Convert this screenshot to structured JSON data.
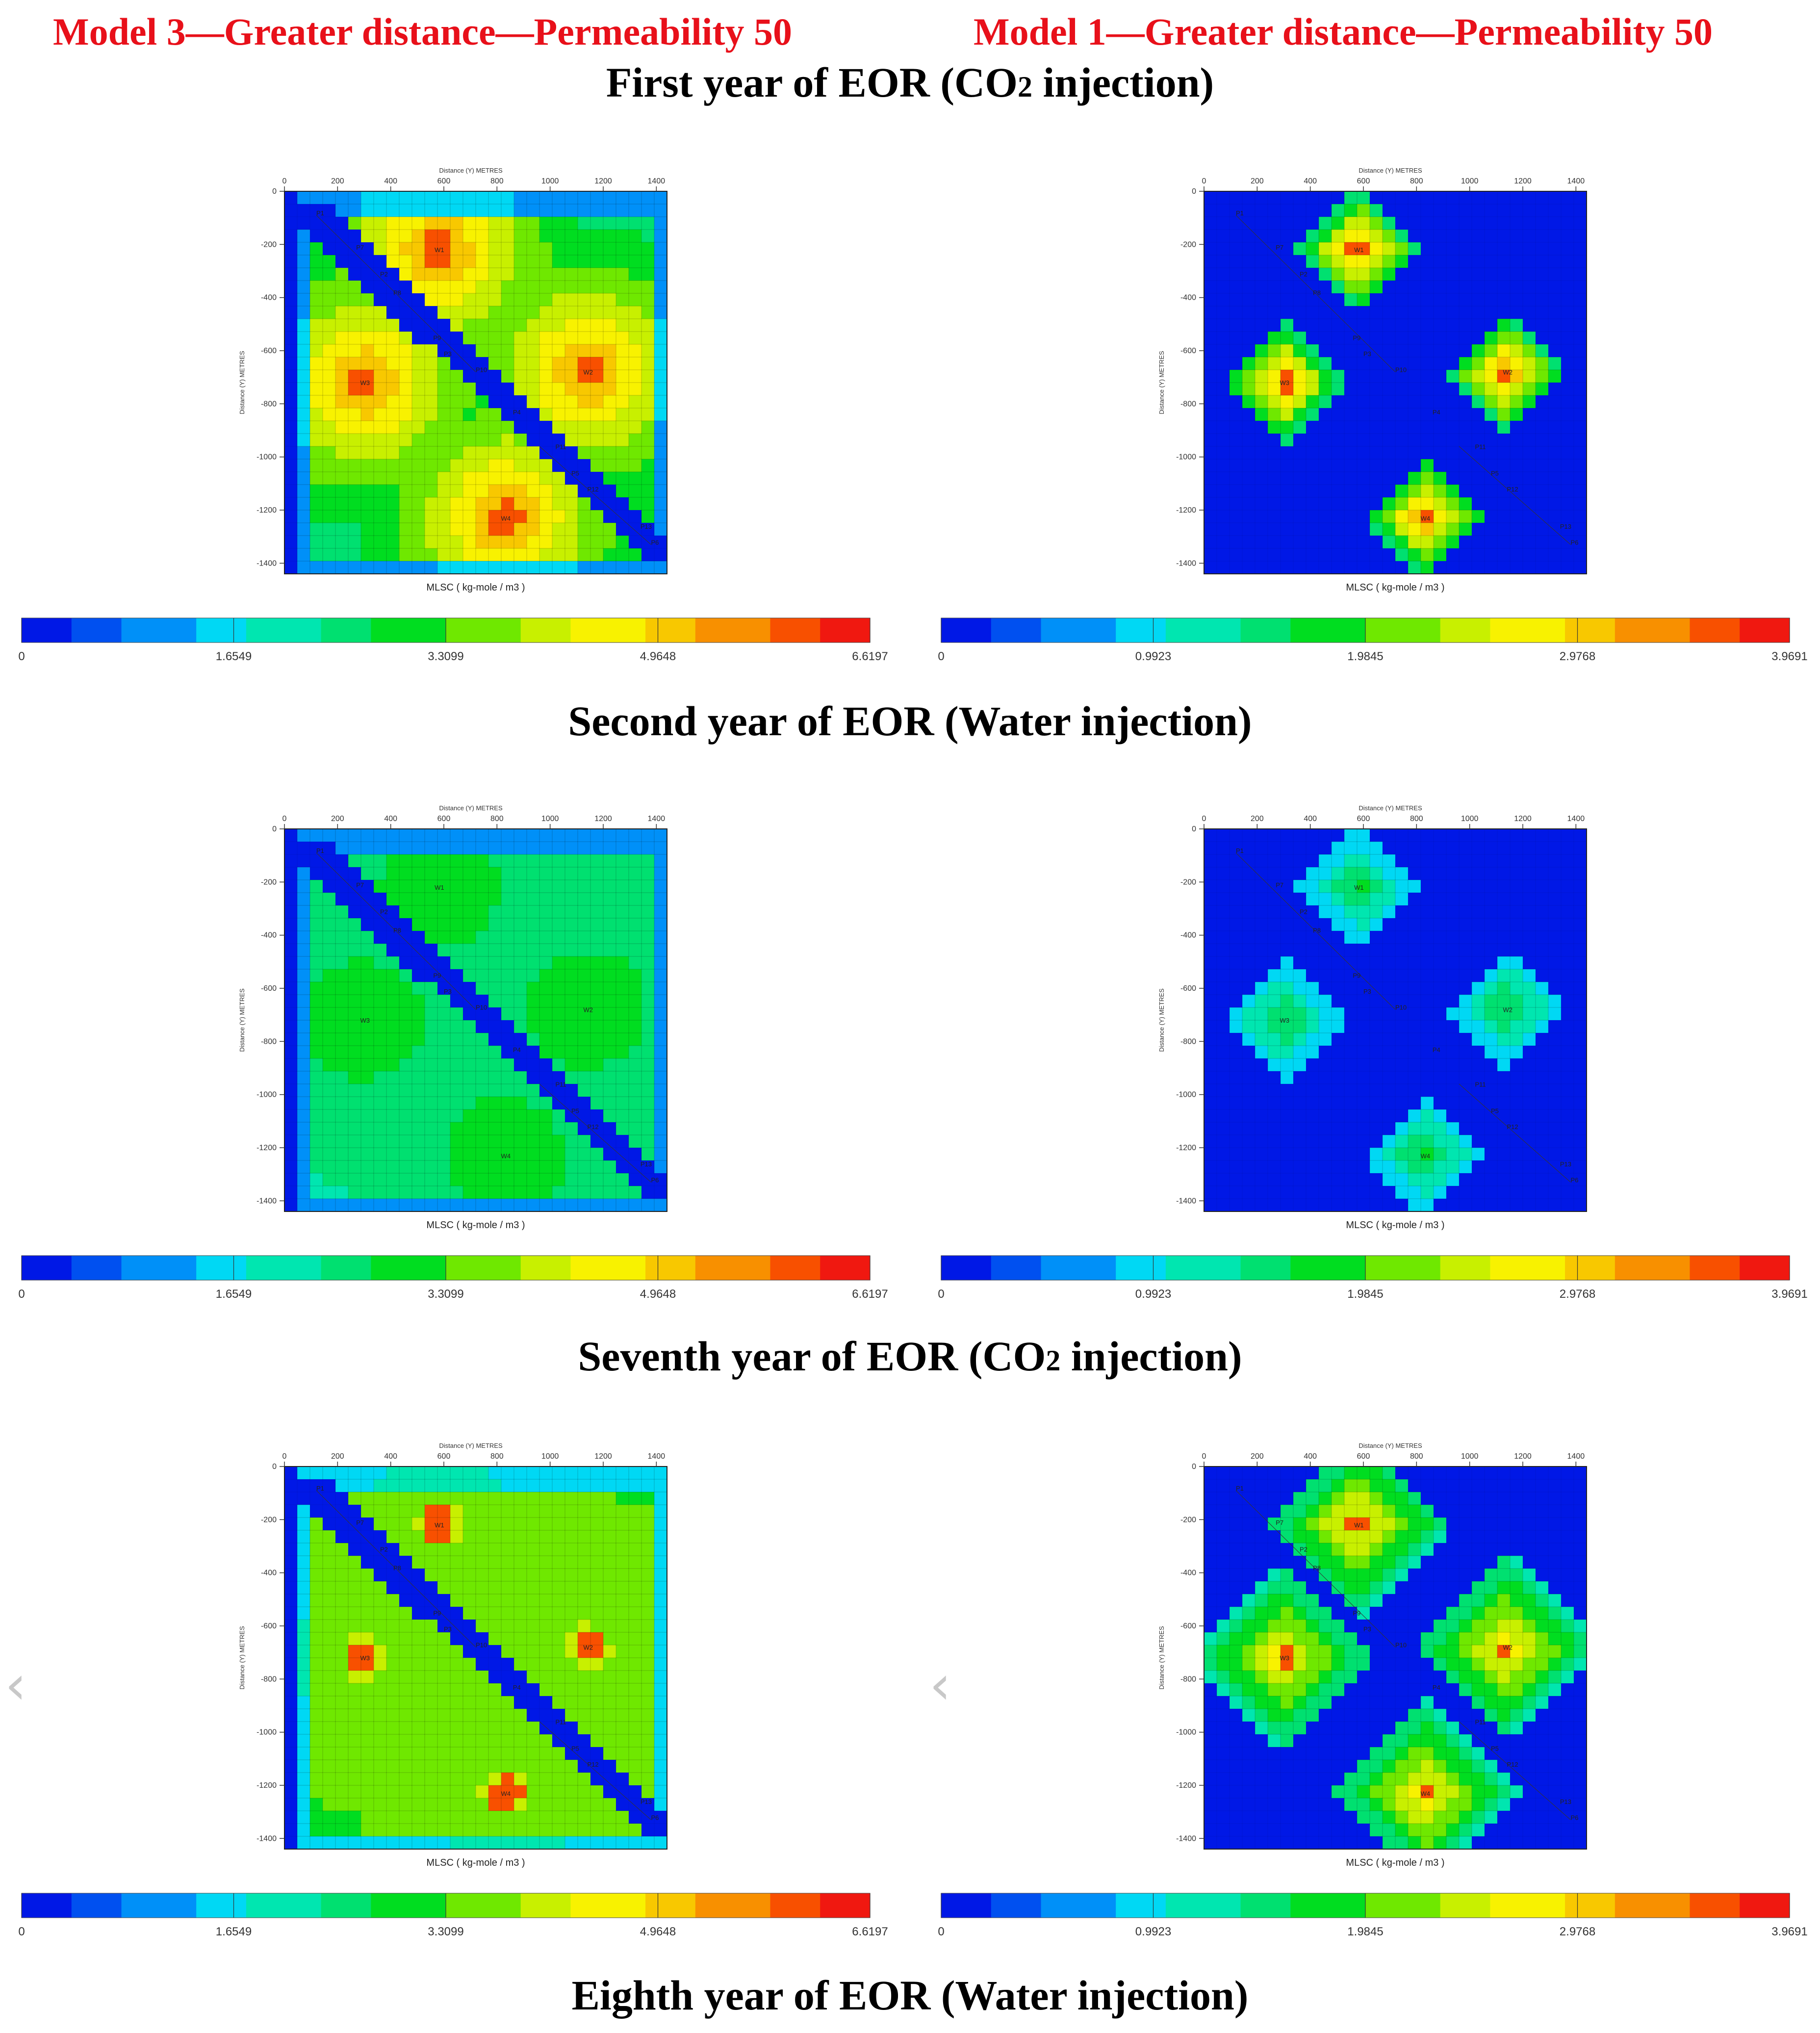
{
  "headers": {
    "left": "Model 3—Greater distance—Permeability 50",
    "right": "Model 1—Greater distance—Permeability 50"
  },
  "section_titles": [
    {
      "pre": "First year of EOR (CO",
      "sub": "2",
      "post": " injection)"
    },
    {
      "pre": "Second year of EOR (Water injection)",
      "sub": "",
      "post": ""
    },
    {
      "pre": "Seventh year of EOR (CO",
      "sub": "2",
      "post": " injection)"
    },
    {
      "pre": "Eighth year of EOR (Water injection)",
      "sub": "",
      "post": ""
    }
  ],
  "colors": {
    "header_red": "#e8101a",
    "ramp": [
      "#0018e6",
      "#0050f0",
      "#0090f8",
      "#00d8f4",
      "#00e6b0",
      "#00e070",
      "#00dd20",
      "#6fe800",
      "#c8f000",
      "#f8f200",
      "#f8c800",
      "#f89000",
      "#f85000",
      "#f01810"
    ]
  },
  "icons": {
    "nav_prev": "chevron-left-icon"
  },
  "nav_glyph": "‹",
  "chart_data": [
    {
      "type": "heatmap",
      "model": "Model 3",
      "period": "First year",
      "grid_size": 30,
      "xlabel": "Distance (Y) METRES",
      "ylabel": "Distance (Y) METRES",
      "colorbar_label": "MLSC ( kg-mole / m3 )",
      "x_ticks": [
        0,
        200,
        400,
        600,
        800,
        1000,
        1200,
        1400
      ],
      "y_ticks": [
        0,
        -200,
        -400,
        -600,
        -800,
        -1000,
        -1200,
        -1400
      ],
      "colorbar_ticks": [
        "0",
        "1.6549",
        "3.3099",
        "4.9648",
        "6.6197"
      ],
      "vmax": 6.6197,
      "wells": [
        {
          "name": "W1",
          "x": 580,
          "y": -220
        },
        {
          "name": "W2",
          "x": 1140,
          "y": -680
        },
        {
          "name": "W3",
          "x": 300,
          "y": -720
        },
        {
          "name": "W4",
          "x": 830,
          "y": -1230
        }
      ],
      "producers": [
        {
          "name": "P1",
          "x": 120,
          "y": -90
        },
        {
          "name": "P7",
          "x": 270,
          "y": -220
        },
        {
          "name": "P2",
          "x": 360,
          "y": -320
        },
        {
          "name": "P8",
          "x": 410,
          "y": -390
        },
        {
          "name": "P9",
          "x": 560,
          "y": -560
        },
        {
          "name": "P3",
          "x": 600,
          "y": -620
        },
        {
          "name": "P10",
          "x": 720,
          "y": -680
        },
        {
          "name": "P4",
          "x": 860,
          "y": -840
        },
        {
          "name": "P11",
          "x": 1020,
          "y": -970
        },
        {
          "name": "P5",
          "x": 1080,
          "y": -1070
        },
        {
          "name": "P12",
          "x": 1140,
          "y": -1130
        },
        {
          "name": "P13",
          "x": 1340,
          "y": -1270
        },
        {
          "name": "P6",
          "x": 1380,
          "y": -1330
        }
      ]
    },
    {
      "type": "heatmap",
      "model": "Model 1",
      "period": "First year",
      "grid_size": 30,
      "xlabel": "Distance (Y) METRES",
      "ylabel": "Distance (Y) METRES",
      "colorbar_label": "MLSC ( kg-mole / m3 )",
      "x_ticks": [
        0,
        200,
        400,
        600,
        800,
        1000,
        1200,
        1400
      ],
      "y_ticks": [
        0,
        -200,
        -400,
        -600,
        -800,
        -1000,
        -1200,
        -1400
      ],
      "colorbar_ticks": [
        "0",
        "0.9923",
        "1.9845",
        "2.9768",
        "3.9691"
      ],
      "vmax": 3.9691,
      "wells": [
        {
          "name": "W1",
          "x": 580,
          "y": -220
        },
        {
          "name": "W2",
          "x": 1140,
          "y": -680
        },
        {
          "name": "W3",
          "x": 300,
          "y": -720
        },
        {
          "name": "W4",
          "x": 830,
          "y": -1230
        }
      ],
      "producers": [
        {
          "name": "P1",
          "x": 120,
          "y": -90
        },
        {
          "name": "P7",
          "x": 270,
          "y": -220
        },
        {
          "name": "P2",
          "x": 360,
          "y": -320
        },
        {
          "name": "P8",
          "x": 410,
          "y": -390
        },
        {
          "name": "P9",
          "x": 560,
          "y": -560
        },
        {
          "name": "P3",
          "x": 600,
          "y": -620
        },
        {
          "name": "P10",
          "x": 720,
          "y": -680
        },
        {
          "name": "P4",
          "x": 860,
          "y": -840
        },
        {
          "name": "P11",
          "x": 1020,
          "y": -970
        },
        {
          "name": "P5",
          "x": 1080,
          "y": -1070
        },
        {
          "name": "P12",
          "x": 1140,
          "y": -1130
        },
        {
          "name": "P13",
          "x": 1340,
          "y": -1270
        },
        {
          "name": "P6",
          "x": 1380,
          "y": -1330
        }
      ]
    },
    {
      "type": "heatmap",
      "model": "Model 3",
      "period": "Second year",
      "grid_size": 30,
      "xlabel": "Distance (Y) METRES",
      "ylabel": "Distance (Y) METRES",
      "colorbar_label": "MLSC ( kg-mole / m3 )",
      "x_ticks": [
        0,
        200,
        400,
        600,
        800,
        1000,
        1200,
        1400
      ],
      "y_ticks": [
        0,
        -200,
        -400,
        -600,
        -800,
        -1000,
        -1200,
        -1400
      ],
      "colorbar_ticks": [
        "0",
        "1.6549",
        "3.3099",
        "4.9648",
        "6.6197"
      ],
      "vmax": 6.6197,
      "wells": [
        {
          "name": "W1",
          "x": 580,
          "y": -220
        },
        {
          "name": "W2",
          "x": 1140,
          "y": -680
        },
        {
          "name": "W3",
          "x": 300,
          "y": -720
        },
        {
          "name": "W4",
          "x": 830,
          "y": -1230
        }
      ],
      "producers": [
        {
          "name": "P1",
          "x": 120,
          "y": -90
        },
        {
          "name": "P7",
          "x": 270,
          "y": -220
        },
        {
          "name": "P2",
          "x": 360,
          "y": -320
        },
        {
          "name": "P8",
          "x": 410,
          "y": -390
        },
        {
          "name": "P9",
          "x": 560,
          "y": -560
        },
        {
          "name": "P3",
          "x": 600,
          "y": -620
        },
        {
          "name": "P10",
          "x": 720,
          "y": -680
        },
        {
          "name": "P4",
          "x": 860,
          "y": -840
        },
        {
          "name": "P11",
          "x": 1020,
          "y": -970
        },
        {
          "name": "P5",
          "x": 1080,
          "y": -1070
        },
        {
          "name": "P12",
          "x": 1140,
          "y": -1130
        },
        {
          "name": "P13",
          "x": 1340,
          "y": -1270
        },
        {
          "name": "P6",
          "x": 1380,
          "y": -1330
        }
      ]
    },
    {
      "type": "heatmap",
      "model": "Model 1",
      "period": "Second year",
      "grid_size": 30,
      "xlabel": "Distance (Y) METRES",
      "ylabel": "Distance (Y) METRES",
      "colorbar_label": "MLSC ( kg-mole / m3 )",
      "x_ticks": [
        0,
        200,
        400,
        600,
        800,
        1000,
        1200,
        1400
      ],
      "y_ticks": [
        0,
        -200,
        -400,
        -600,
        -800,
        -1000,
        -1200,
        -1400
      ],
      "colorbar_ticks": [
        "0",
        "0.9923",
        "1.9845",
        "2.9768",
        "3.9691"
      ],
      "vmax": 3.9691,
      "wells": [
        {
          "name": "W1",
          "x": 580,
          "y": -220
        },
        {
          "name": "W2",
          "x": 1140,
          "y": -680
        },
        {
          "name": "W3",
          "x": 300,
          "y": -720
        },
        {
          "name": "W4",
          "x": 830,
          "y": -1230
        }
      ],
      "producers": [
        {
          "name": "P1",
          "x": 120,
          "y": -90
        },
        {
          "name": "P7",
          "x": 270,
          "y": -220
        },
        {
          "name": "P2",
          "x": 360,
          "y": -320
        },
        {
          "name": "P8",
          "x": 410,
          "y": -390
        },
        {
          "name": "P9",
          "x": 560,
          "y": -560
        },
        {
          "name": "P3",
          "x": 600,
          "y": -620
        },
        {
          "name": "P10",
          "x": 720,
          "y": -680
        },
        {
          "name": "P4",
          "x": 860,
          "y": -840
        },
        {
          "name": "P11",
          "x": 1020,
          "y": -970
        },
        {
          "name": "P5",
          "x": 1080,
          "y": -1070
        },
        {
          "name": "P12",
          "x": 1140,
          "y": -1130
        },
        {
          "name": "P13",
          "x": 1340,
          "y": -1270
        },
        {
          "name": "P6",
          "x": 1380,
          "y": -1330
        }
      ]
    },
    {
      "type": "heatmap",
      "model": "Model 3",
      "period": "Seventh year",
      "grid_size": 30,
      "xlabel": "Distance (Y) METRES",
      "ylabel": "Distance (Y) METRES",
      "colorbar_label": "MLSC ( kg-mole / m3 )",
      "x_ticks": [
        0,
        200,
        400,
        600,
        800,
        1000,
        1200,
        1400
      ],
      "y_ticks": [
        0,
        -200,
        -400,
        -600,
        -800,
        -1000,
        -1200,
        -1400
      ],
      "colorbar_ticks": [
        "0",
        "1.6549",
        "3.3099",
        "4.9648",
        "6.6197"
      ],
      "vmax": 6.6197,
      "wells": [
        {
          "name": "W1",
          "x": 580,
          "y": -220
        },
        {
          "name": "W2",
          "x": 1140,
          "y": -680
        },
        {
          "name": "W3",
          "x": 300,
          "y": -720
        },
        {
          "name": "W4",
          "x": 830,
          "y": -1230
        }
      ],
      "producers": [
        {
          "name": "P1",
          "x": 120,
          "y": -90
        },
        {
          "name": "P7",
          "x": 270,
          "y": -220
        },
        {
          "name": "P2",
          "x": 360,
          "y": -320
        },
        {
          "name": "P8",
          "x": 410,
          "y": -390
        },
        {
          "name": "P9",
          "x": 560,
          "y": -560
        },
        {
          "name": "P3",
          "x": 600,
          "y": -620
        },
        {
          "name": "P10",
          "x": 720,
          "y": -680
        },
        {
          "name": "P4",
          "x": 860,
          "y": -840
        },
        {
          "name": "P11",
          "x": 1020,
          "y": -970
        },
        {
          "name": "P5",
          "x": 1080,
          "y": -1070
        },
        {
          "name": "P12",
          "x": 1140,
          "y": -1130
        },
        {
          "name": "P13",
          "x": 1340,
          "y": -1270
        },
        {
          "name": "P6",
          "x": 1380,
          "y": -1330
        }
      ]
    },
    {
      "type": "heatmap",
      "model": "Model 1",
      "period": "Seventh year",
      "grid_size": 30,
      "xlabel": "Distance (Y) METRES",
      "ylabel": "Distance (Y) METRES",
      "colorbar_label": "MLSC ( kg-mole / m3 )",
      "x_ticks": [
        0,
        200,
        400,
        600,
        800,
        1000,
        1200,
        1400
      ],
      "y_ticks": [
        0,
        -200,
        -400,
        -600,
        -800,
        -1000,
        -1200,
        -1400
      ],
      "colorbar_ticks": [
        "0",
        "0.9923",
        "1.9845",
        "2.9768",
        "3.9691"
      ],
      "vmax": 3.9691,
      "wells": [
        {
          "name": "W1",
          "x": 580,
          "y": -220
        },
        {
          "name": "W2",
          "x": 1140,
          "y": -680
        },
        {
          "name": "W3",
          "x": 300,
          "y": -720
        },
        {
          "name": "W4",
          "x": 830,
          "y": -1230
        }
      ],
      "producers": [
        {
          "name": "P1",
          "x": 120,
          "y": -90
        },
        {
          "name": "P7",
          "x": 270,
          "y": -220
        },
        {
          "name": "P2",
          "x": 360,
          "y": -320
        },
        {
          "name": "P8",
          "x": 410,
          "y": -390
        },
        {
          "name": "P9",
          "x": 560,
          "y": -560
        },
        {
          "name": "P3",
          "x": 600,
          "y": -620
        },
        {
          "name": "P10",
          "x": 720,
          "y": -680
        },
        {
          "name": "P4",
          "x": 860,
          "y": -840
        },
        {
          "name": "P11",
          "x": 1020,
          "y": -970
        },
        {
          "name": "P5",
          "x": 1080,
          "y": -1070
        },
        {
          "name": "P12",
          "x": 1140,
          "y": -1130
        },
        {
          "name": "P13",
          "x": 1340,
          "y": -1270
        },
        {
          "name": "P6",
          "x": 1380,
          "y": -1330
        }
      ]
    }
  ]
}
